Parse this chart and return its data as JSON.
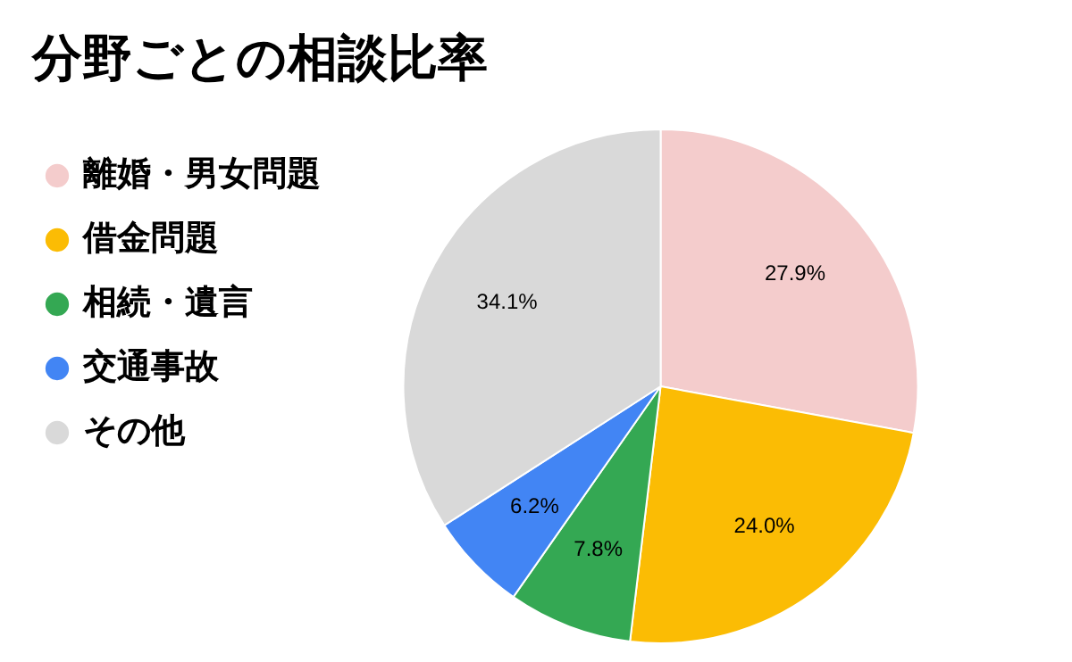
{
  "chart_data": {
    "type": "pie",
    "title": "分野ごとの相談比率",
    "categories": [
      "離婚・男女問題",
      "借金問題",
      "相続・遺言",
      "交通事故",
      "その他"
    ],
    "values": [
      27.9,
      24.0,
      7.8,
      6.2,
      34.1
    ],
    "colors": [
      "#f4cccc",
      "#fbbc04",
      "#34a853",
      "#4285f4",
      "#d9d9d9"
    ],
    "value_labels": [
      "27.9%",
      "24.0%",
      "7.8%",
      "6.2%",
      "34.1%"
    ],
    "legend": "left"
  }
}
